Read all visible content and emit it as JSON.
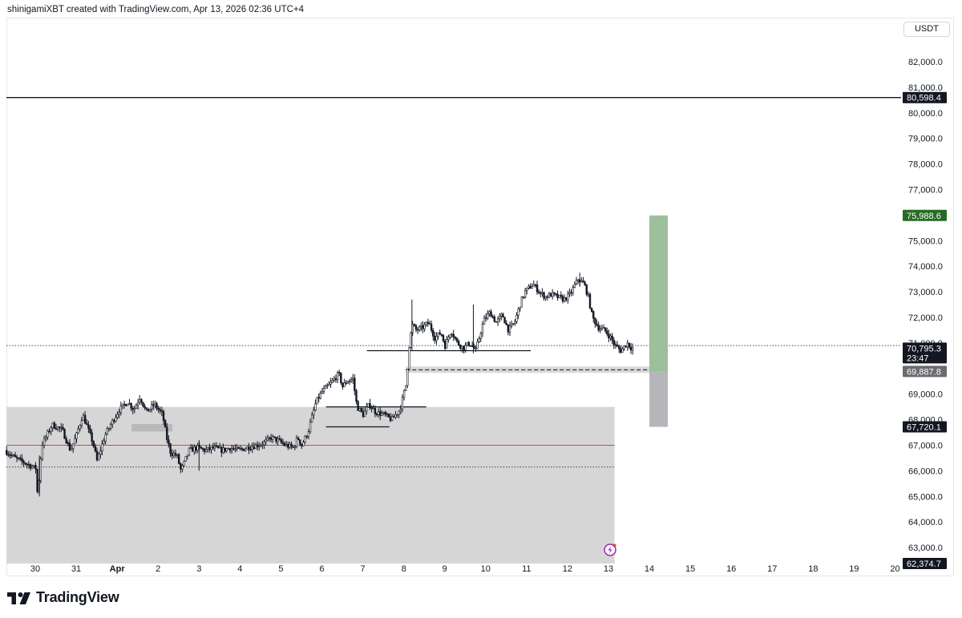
{
  "header": {
    "attribution": "shinigamiXBT created with TradingView.com, Apr 13, 2026 02:36 UTC+4"
  },
  "currency": "USDT",
  "brand": {
    "name": "TradingView",
    "logo_icon": "tradingview-logo-icon"
  },
  "colors": {
    "candle": "#131722",
    "zone_fill": "#d6d6d6",
    "profit_fill": "#9cbf9c",
    "stop_fill": "#b6b6ba",
    "red_line": "#f23645",
    "target_badge": "#266b26",
    "entry_badge": "#6b6b70",
    "dark_badge": "#131722"
  },
  "chart_data": {
    "type": "candlestick",
    "symbol_currency": "USDT",
    "x_ticks": [
      {
        "label": "30",
        "day": 0
      },
      {
        "label": "31",
        "day": 1
      },
      {
        "label": "Apr",
        "day": 2
      },
      {
        "label": "2",
        "day": 3
      },
      {
        "label": "3",
        "day": 4
      },
      {
        "label": "4",
        "day": 5
      },
      {
        "label": "5",
        "day": 6
      },
      {
        "label": "6",
        "day": 7
      },
      {
        "label": "7",
        "day": 8
      },
      {
        "label": "8",
        "day": 9
      },
      {
        "label": "9",
        "day": 10
      },
      {
        "label": "10",
        "day": 11
      },
      {
        "label": "11",
        "day": 12
      },
      {
        "label": "12",
        "day": 13
      },
      {
        "label": "13",
        "day": 14
      },
      {
        "label": "14",
        "day": 15
      },
      {
        "label": "15",
        "day": 16
      },
      {
        "label": "16",
        "day": 17
      },
      {
        "label": "17",
        "day": 18
      },
      {
        "label": "18",
        "day": 19
      },
      {
        "label": "19",
        "day": 20
      },
      {
        "label": "20",
        "day": 21
      }
    ],
    "y_ticks": [
      "82,000.0",
      "81,000.0",
      "80,000.0",
      "79,000.0",
      "78,000.0",
      "77,000.0",
      "76,000.0",
      "75,000.0",
      "74,000.0",
      "73,000.0",
      "72,000.0",
      "71,000.0",
      "70,000.0",
      "69,000.0",
      "68,000.0",
      "67,000.0",
      "66,000.0",
      "65,000.0",
      "64,000.0",
      "63,000.0"
    ],
    "y_range": [
      62500,
      82700
    ],
    "price_path": [
      [
        -0.7,
        66800
      ],
      [
        -0.45,
        66500
      ],
      [
        -0.2,
        66300
      ],
      [
        0.05,
        66100
      ],
      [
        0.1,
        65000
      ],
      [
        0.2,
        67000
      ],
      [
        0.45,
        67800
      ],
      [
        0.7,
        67600
      ],
      [
        0.9,
        66800
      ],
      [
        1.05,
        67400
      ],
      [
        1.2,
        68200
      ],
      [
        1.45,
        67100
      ],
      [
        1.55,
        66400
      ],
      [
        1.75,
        67400
      ],
      [
        1.95,
        68000
      ],
      [
        2.1,
        68400
      ],
      [
        2.3,
        68700
      ],
      [
        2.45,
        68400
      ],
      [
        2.6,
        68900
      ],
      [
        2.75,
        68300
      ],
      [
        2.95,
        68600
      ],
      [
        3.15,
        68200
      ],
      [
        3.25,
        67300
      ],
      [
        3.35,
        66700
      ],
      [
        3.5,
        66600
      ],
      [
        3.6,
        66000
      ],
      [
        3.8,
        66800
      ],
      [
        4.0,
        66900
      ],
      [
        4.2,
        66800
      ],
      [
        4.4,
        66900
      ],
      [
        4.6,
        66800
      ],
      [
        4.8,
        66900
      ],
      [
        5.0,
        66800
      ],
      [
        5.2,
        66900
      ],
      [
        5.45,
        67000
      ],
      [
        5.65,
        67100
      ],
      [
        5.8,
        67300
      ],
      [
        5.95,
        67200
      ],
      [
        6.15,
        67000
      ],
      [
        6.35,
        66900
      ],
      [
        6.45,
        67300
      ],
      [
        6.55,
        67000
      ],
      [
        6.7,
        67500
      ],
      [
        6.8,
        68100
      ],
      [
        6.9,
        68700
      ],
      [
        7.05,
        69100
      ],
      [
        7.25,
        69400
      ],
      [
        7.45,
        69800
      ],
      [
        7.55,
        69300
      ],
      [
        7.65,
        69500
      ],
      [
        7.8,
        69600
      ],
      [
        7.9,
        68500
      ],
      [
        8.05,
        68200
      ],
      [
        8.2,
        68600
      ],
      [
        8.35,
        68300
      ],
      [
        8.55,
        68200
      ],
      [
        8.75,
        68000
      ],
      [
        8.95,
        68400
      ],
      [
        9.1,
        69400
      ],
      [
        9.18,
        71000
      ],
      [
        9.25,
        71700
      ],
      [
        9.35,
        71500
      ],
      [
        9.5,
        71600
      ],
      [
        9.65,
        71800
      ],
      [
        9.8,
        71200
      ],
      [
        9.95,
        71400
      ],
      [
        10.05,
        70900
      ],
      [
        10.2,
        71500
      ],
      [
        10.35,
        71000
      ],
      [
        10.5,
        70800
      ],
      [
        10.65,
        71000
      ],
      [
        10.8,
        70700
      ],
      [
        10.9,
        71300
      ],
      [
        11.0,
        71900
      ],
      [
        11.15,
        72200
      ],
      [
        11.3,
        71800
      ],
      [
        11.45,
        72100
      ],
      [
        11.6,
        71500
      ],
      [
        11.75,
        71800
      ],
      [
        11.9,
        72600
      ],
      [
        12.0,
        73000
      ],
      [
        12.2,
        73300
      ],
      [
        12.35,
        73000
      ],
      [
        12.5,
        72800
      ],
      [
        12.65,
        72900
      ],
      [
        12.8,
        72800
      ],
      [
        12.95,
        72700
      ],
      [
        13.1,
        72900
      ],
      [
        13.3,
        73500
      ],
      [
        13.45,
        73300
      ],
      [
        13.55,
        72800
      ],
      [
        13.65,
        72000
      ],
      [
        13.8,
        71600
      ],
      [
        13.95,
        71500
      ],
      [
        14.1,
        71200
      ],
      [
        14.2,
        70900
      ],
      [
        14.35,
        70700
      ],
      [
        14.5,
        71000
      ],
      [
        14.6,
        70800
      ]
    ],
    "horizontal_levels": [
      {
        "price": 80598.4,
        "style": "solid-black",
        "label": "80,598.4"
      },
      {
        "price": 70900,
        "style": "dotted",
        "extent": "full"
      },
      {
        "price": 69950,
        "style": "dashed",
        "extent": "from-apr8"
      },
      {
        "price": 67000,
        "style": "solid-red",
        "extent": "left-zone"
      },
      {
        "price": 66150,
        "style": "dotted",
        "extent": "left-zone"
      }
    ],
    "segments": [
      {
        "x1": 8.1,
        "x2": 12.1,
        "price": 70700
      },
      {
        "x1": 7.1,
        "x2": 9.55,
        "price": 68500
      },
      {
        "x1": 7.1,
        "x2": 8.65,
        "price": 67720
      }
    ],
    "zone": {
      "x_start": -0.7,
      "x_end": 14.15,
      "price_top": 68500,
      "price_bottom": 62374.7
    },
    "mini_block": {
      "x_start": 2.35,
      "x_end": 3.35,
      "price_top": 67830,
      "price_bottom": 67540
    },
    "position_tool": {
      "x_start": 15,
      "x_end": 15.45,
      "entry": 69887.8,
      "target": 75988.6,
      "stop": 67720.1
    },
    "price_badges": [
      {
        "price": 80598.4,
        "text": "80,598.4",
        "kind": "dark"
      },
      {
        "price": 75988.6,
        "text": "75,988.6",
        "kind": "target"
      },
      {
        "price": 70795.3,
        "text": "70,795.3",
        "sub": "23:47",
        "kind": "dark"
      },
      {
        "price": 69887.8,
        "text": "69,887.8",
        "kind": "entry"
      },
      {
        "price": 67720.1,
        "text": "67,720.1",
        "kind": "dark"
      },
      {
        "price": 62374.7,
        "text": "62,374.7",
        "kind": "dark"
      }
    ]
  }
}
